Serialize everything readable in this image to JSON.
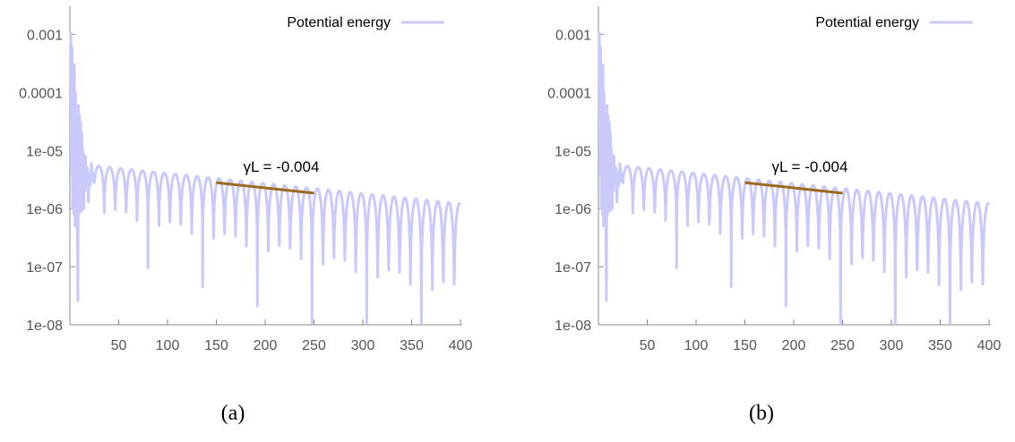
{
  "style": {
    "series_color": "#c9c9fb",
    "fit_line_color": "#9b6a1e",
    "tick_color": "#555555",
    "axis_color": "#888888"
  },
  "chart_data": [
    {
      "type": "line",
      "panel": "a",
      "caption": "(a)",
      "series": [
        {
          "name": "Potential energy",
          "description_note": "",
          "x": [],
          "y": []
        }
      ],
      "legend": {
        "position": "top-right",
        "label": "Potential energy"
      },
      "xlim": [
        0,
        400
      ],
      "ylim": [
        1e-08,
        0.0015
      ],
      "yscale": "log",
      "xticks": [
        50,
        100,
        150,
        200,
        250,
        300,
        350,
        400
      ],
      "xtick_labels": [
        "50",
        "100",
        "150",
        "200",
        "250",
        "300",
        "350",
        "400"
      ],
      "yticks": [
        0.001,
        0.0001,
        1e-05,
        1e-06,
        1e-07,
        1e-08
      ],
      "ytick_labels": [
        "0.001",
        "0.0001",
        "1e-05",
        "1e-06",
        "1e-07",
        "1e-08"
      ],
      "grid": false,
      "annotation": {
        "text": "γL = -0.004",
        "rate": -0.004,
        "fit_x": [
          150,
          250
        ],
        "fit_y": [
          2.8e-06,
          1.85e-06
        ]
      },
      "envelope": {
        "peak_start": 5.5e-06,
        "peak_rate": -0.004,
        "trough_start": 2e-07,
        "trough_rate": -0.0135,
        "period": 11.2
      }
    },
    {
      "type": "line",
      "panel": "b",
      "caption": "(b)",
      "series": [
        {
          "name": "Potential energy",
          "x": [],
          "y": []
        }
      ],
      "legend": {
        "position": "top-right",
        "label": "Potential energy"
      },
      "xlim": [
        0,
        400
      ],
      "ylim": [
        1e-08,
        0.0015
      ],
      "yscale": "log",
      "xticks": [
        50,
        100,
        150,
        200,
        250,
        300,
        350,
        400
      ],
      "xtick_labels": [
        "50",
        "100",
        "150",
        "200",
        "250",
        "300",
        "350",
        "400"
      ],
      "yticks": [
        0.001,
        0.0001,
        1e-05,
        1e-06,
        1e-07,
        1e-08
      ],
      "ytick_labels": [
        "0.001",
        "0.0001",
        "1e-05",
        "1e-06",
        "1e-07",
        "1e-08"
      ],
      "grid": false,
      "annotation": {
        "text": "γL = -0.004",
        "rate": -0.004,
        "fit_x": [
          150,
          250
        ],
        "fit_y": [
          2.8e-06,
          1.85e-06
        ]
      },
      "envelope": {
        "peak_start": 5.5e-06,
        "peak_rate": -0.004,
        "trough_start": 2e-07,
        "trough_rate": -0.0135,
        "period": 11.2
      }
    }
  ]
}
